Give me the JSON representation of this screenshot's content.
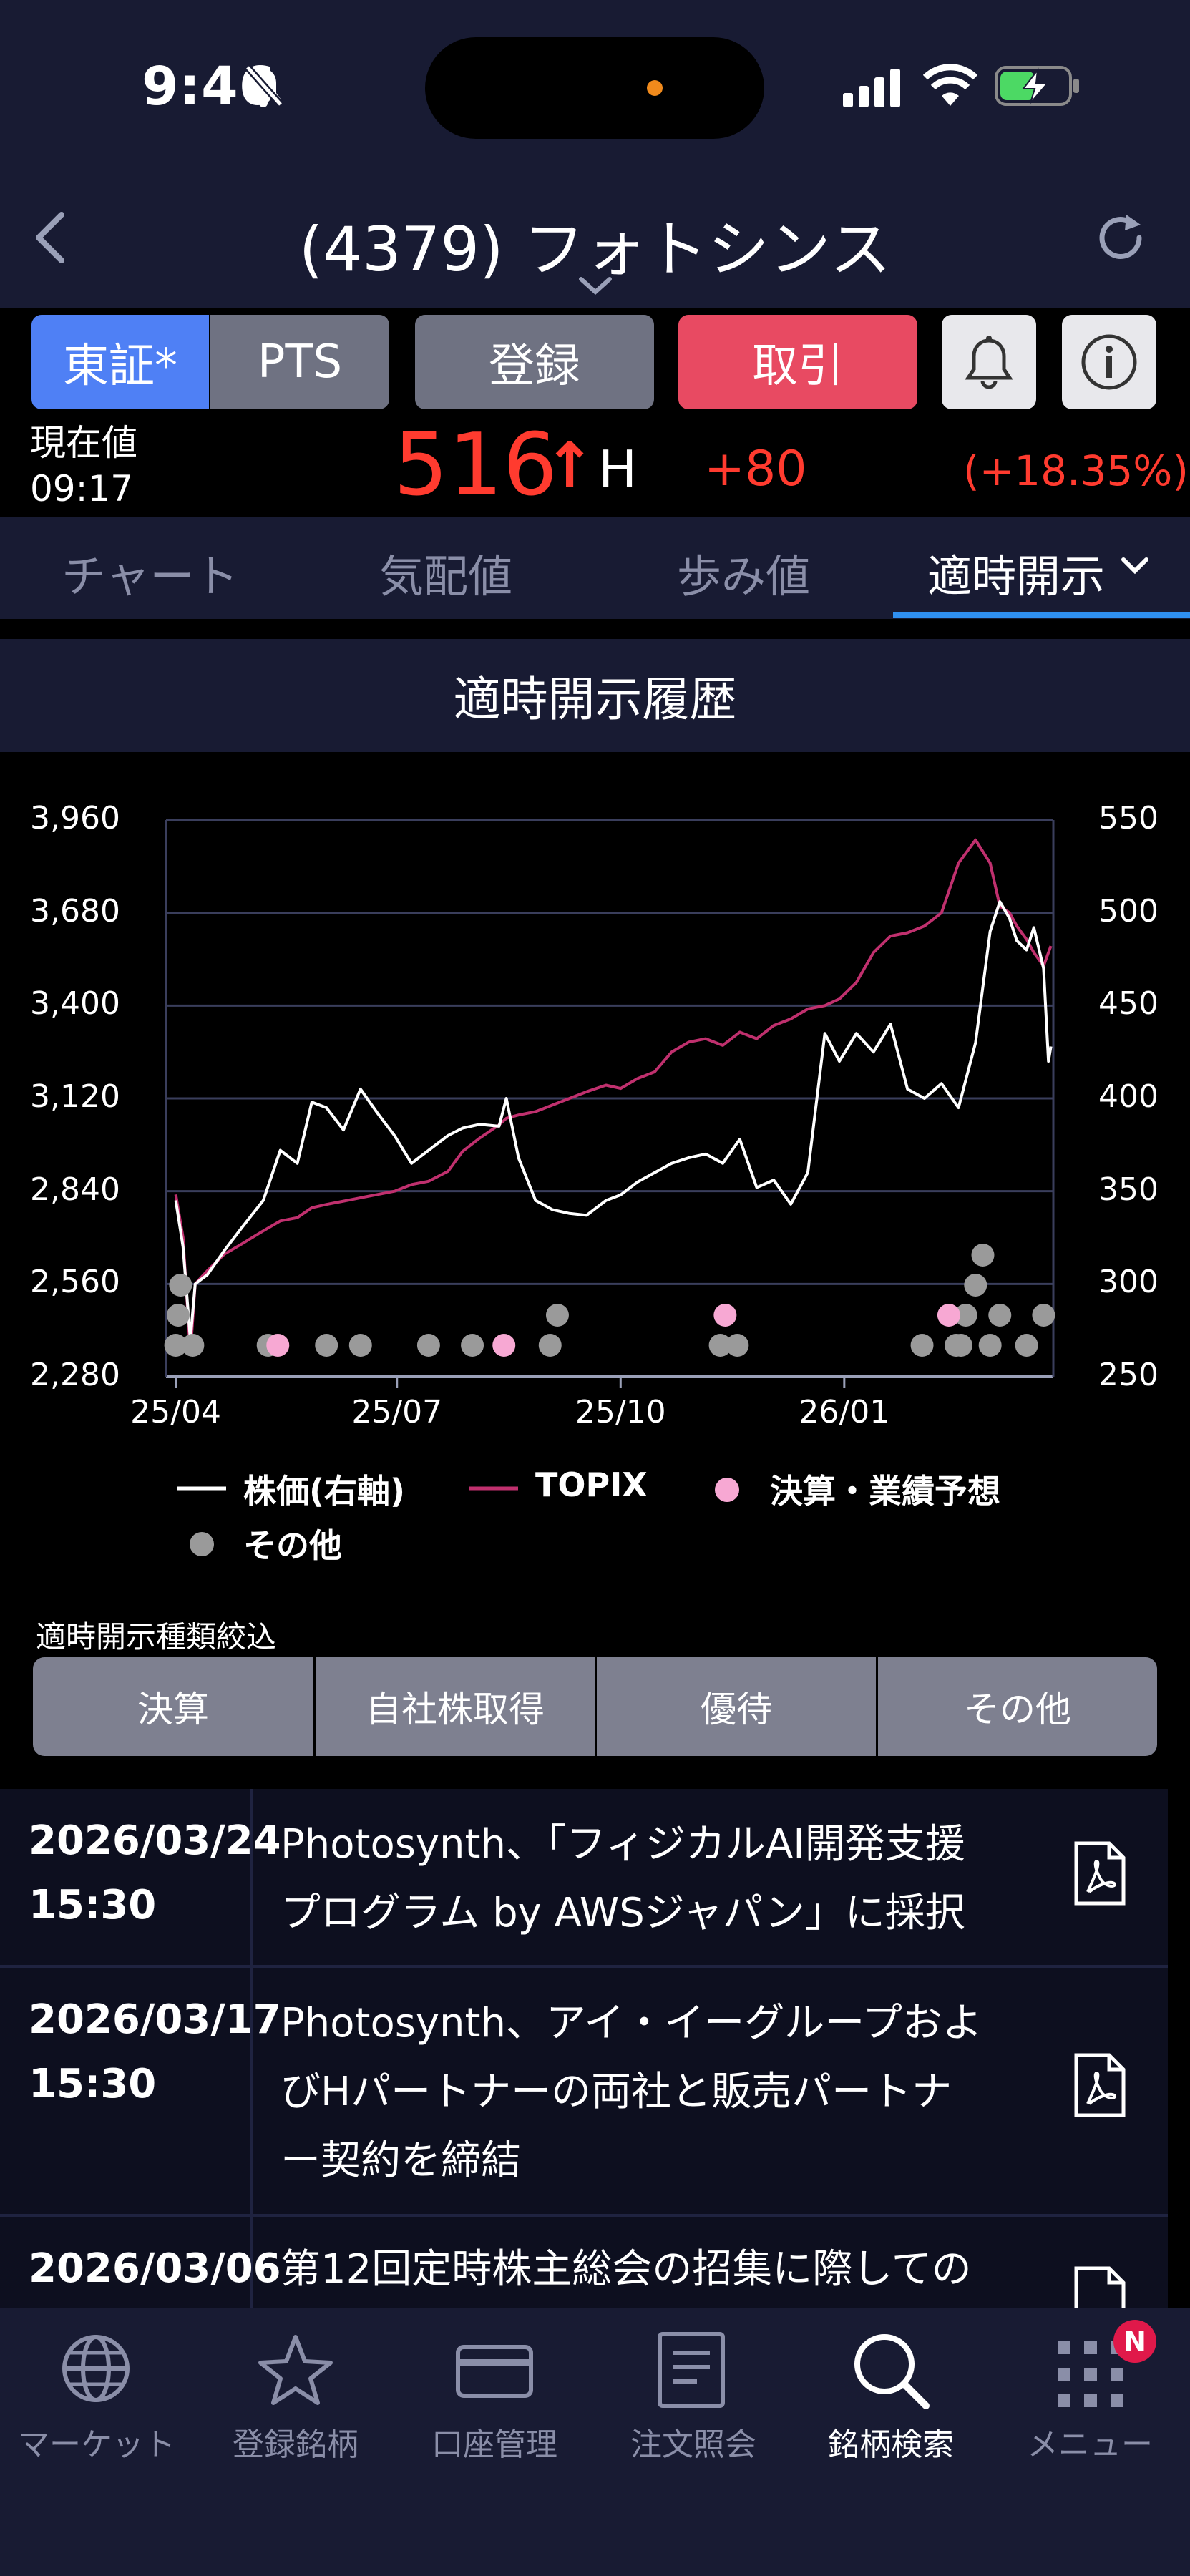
{
  "status_bar": {
    "time": "9:46"
  },
  "header": {
    "title": "(4379) フォトシンス"
  },
  "toolbar": {
    "market_primary": "東証*",
    "market_secondary": "PTS",
    "register_label": "登録",
    "trade_label": "取引"
  },
  "price": {
    "label_line1": "現在値",
    "label_line2": "09:17",
    "value": "516",
    "arrow": "↑",
    "flag": "H",
    "change": "+80",
    "change_pct": "(+18.35%)"
  },
  "tabs": [
    {
      "label": "チャート"
    },
    {
      "label": "気配値"
    },
    {
      "label": "歩み値"
    },
    {
      "label": "適時開示",
      "active": true
    }
  ],
  "section_title": "適時開示履歴",
  "chart_data": {
    "type": "line",
    "left_axis": {
      "ticks": [
        "3,960",
        "3,680",
        "3,400",
        "3,120",
        "2,840",
        "2,560",
        "2,280"
      ],
      "ylim": [
        2280,
        3960
      ],
      "series": "TOPIX"
    },
    "right_axis": {
      "ticks": [
        "550",
        "500",
        "450",
        "400",
        "350",
        "300",
        "250"
      ],
      "ylim": [
        250,
        550
      ],
      "series": "株価(右軸)"
    },
    "x_ticks": [
      "25/04",
      "25/07",
      "25/10",
      "26/01"
    ],
    "grid": true,
    "colors": {
      "stock": "#ffffff",
      "topix": "#c0306e",
      "earnings": "#f7a8d3",
      "other": "#9a9a9a"
    },
    "series": [
      {
        "name": "株価(右軸)",
        "axis": "right",
        "color": "#ffffff",
        "x": [
          "2025-04-01",
          "2025-04-04",
          "2025-04-07",
          "2025-04-09",
          "2025-04-14",
          "2025-04-21",
          "2025-04-28",
          "2025-05-07",
          "2025-05-14",
          "2025-05-21",
          "2025-05-27",
          "2025-06-02",
          "2025-06-09",
          "2025-06-16",
          "2025-06-23",
          "2025-06-30",
          "2025-07-07",
          "2025-07-14",
          "2025-07-22",
          "2025-07-28",
          "2025-08-04",
          "2025-08-12",
          "2025-08-15",
          "2025-08-20",
          "2025-08-27",
          "2025-09-03",
          "2025-09-10",
          "2025-09-17",
          "2025-09-25",
          "2025-10-01",
          "2025-10-08",
          "2025-10-15",
          "2025-10-22",
          "2025-10-29",
          "2025-11-05",
          "2025-11-12",
          "2025-11-19",
          "2025-11-26",
          "2025-12-03",
          "2025-12-10",
          "2025-12-17",
          "2025-12-24",
          "2025-12-30",
          "2026-01-06",
          "2026-01-13",
          "2026-01-20",
          "2026-01-27",
          "2026-02-03",
          "2026-02-10",
          "2026-02-17",
          "2026-02-24",
          "2026-03-02",
          "2026-03-06",
          "2026-03-10",
          "2026-03-13",
          "2026-03-17",
          "2026-03-20",
          "2026-03-24",
          "2026-03-26",
          "2026-03-27"
        ],
        "y": [
          345,
          320,
          270,
          300,
          305,
          318,
          330,
          345,
          372,
          365,
          398,
          395,
          383,
          405,
          392,
          380,
          365,
          372,
          380,
          384,
          386,
          385,
          400,
          368,
          345,
          340,
          338,
          337,
          345,
          348,
          355,
          360,
          365,
          368,
          370,
          365,
          378,
          352,
          356,
          343,
          360,
          435,
          420,
          435,
          425,
          440,
          405,
          400,
          408,
          395,
          430,
          490,
          506,
          497,
          485,
          480,
          492,
          470,
          420,
          428
        ]
      },
      {
        "name": "TOPIX",
        "axis": "left",
        "color": "#c0306e",
        "x": [
          "2025-04-01",
          "2025-04-04",
          "2025-04-07",
          "2025-04-09",
          "2025-04-14",
          "2025-04-21",
          "2025-04-28",
          "2025-05-07",
          "2025-05-14",
          "2025-05-21",
          "2025-05-27",
          "2025-06-02",
          "2025-06-09",
          "2025-06-16",
          "2025-06-23",
          "2025-06-30",
          "2025-07-07",
          "2025-07-14",
          "2025-07-22",
          "2025-07-28",
          "2025-08-04",
          "2025-08-12",
          "2025-08-15",
          "2025-08-20",
          "2025-08-27",
          "2025-09-03",
          "2025-09-10",
          "2025-09-17",
          "2025-09-25",
          "2025-10-01",
          "2025-10-08",
          "2025-10-15",
          "2025-10-22",
          "2025-10-29",
          "2025-11-05",
          "2025-11-12",
          "2025-11-19",
          "2025-11-26",
          "2025-12-03",
          "2025-12-10",
          "2025-12-17",
          "2025-12-24",
          "2025-12-30",
          "2026-01-06",
          "2026-01-13",
          "2026-01-20",
          "2026-01-27",
          "2026-02-03",
          "2026-02-10",
          "2026-02-17",
          "2026-02-24",
          "2026-03-02",
          "2026-03-06",
          "2026-03-10",
          "2026-03-13",
          "2026-03-17",
          "2026-03-20",
          "2026-03-24",
          "2026-03-26",
          "2026-03-27"
        ],
        "y": [
          2830,
          2700,
          2350,
          2560,
          2600,
          2650,
          2680,
          2720,
          2750,
          2760,
          2790,
          2800,
          2810,
          2820,
          2830,
          2840,
          2860,
          2870,
          2900,
          2960,
          3000,
          3040,
          3060,
          3070,
          3080,
          3100,
          3120,
          3140,
          3160,
          3150,
          3180,
          3200,
          3260,
          3290,
          3300,
          3280,
          3320,
          3300,
          3340,
          3360,
          3390,
          3400,
          3420,
          3470,
          3560,
          3610,
          3620,
          3640,
          3680,
          3830,
          3900,
          3830,
          3700,
          3680,
          3640,
          3600,
          3560,
          3520,
          3560,
          3580
        ]
      }
    ],
    "events": {
      "earnings": [
        "2025-05-13",
        "2025-08-14",
        "2025-11-13",
        "2026-02-13"
      ],
      "other": [
        "2025-04-01",
        "2025-04-02",
        "2025-04-03",
        "2025-04-08",
        "2025-05-09",
        "2025-06-02",
        "2025-06-16",
        "2025-07-14",
        "2025-08-01",
        "2025-09-02",
        "2025-09-05",
        "2025-11-11",
        "2025-11-18",
        "2026-02-02",
        "2026-02-16",
        "2026-02-18",
        "2026-02-20",
        "2026-02-24",
        "2026-02-27",
        "2026-03-02",
        "2026-03-06",
        "2026-03-17",
        "2026-03-24"
      ]
    },
    "legend": [
      {
        "label": "株価(右軸)",
        "kind": "line",
        "color": "#ffffff"
      },
      {
        "label": "TOPIX",
        "kind": "line",
        "color": "#c0306e"
      },
      {
        "label": "決算・業績予想",
        "kind": "dot",
        "color": "#f7a8d3"
      },
      {
        "label": "その他",
        "kind": "dot",
        "color": "#9a9a9a"
      }
    ]
  },
  "filter": {
    "title": "適時開示種類絞込",
    "buttons": [
      "決算",
      "自社株取得",
      "優待",
      "その他"
    ]
  },
  "news": [
    {
      "date": "2026/03/24",
      "time": "15:30",
      "lines": [
        "Photosynth、「フィジカルAI開発支援",
        "プログラム by AWSジャパン」に採択"
      ]
    },
    {
      "date": "2026/03/17",
      "time": "15:30",
      "lines": [
        "Photosynth、アイ・イーグループおよ",
        "びHパートナーの両社と販売パートナ",
        "ー契約を締結"
      ]
    },
    {
      "date": "2026/03/06",
      "time": "",
      "lines": [
        "第12回定時株主総会の招集に際しての"
      ]
    }
  ],
  "bottom_nav": [
    {
      "label": "マーケット",
      "icon": "globe-icon"
    },
    {
      "label": "登録銘柄",
      "icon": "star-icon"
    },
    {
      "label": "口座管理",
      "icon": "card-icon"
    },
    {
      "label": "注文照会",
      "icon": "document-icon"
    },
    {
      "label": "銘柄検索",
      "icon": "search-icon",
      "active": true
    },
    {
      "label": "メニュー",
      "icon": "grid-icon",
      "badge": "N"
    }
  ]
}
